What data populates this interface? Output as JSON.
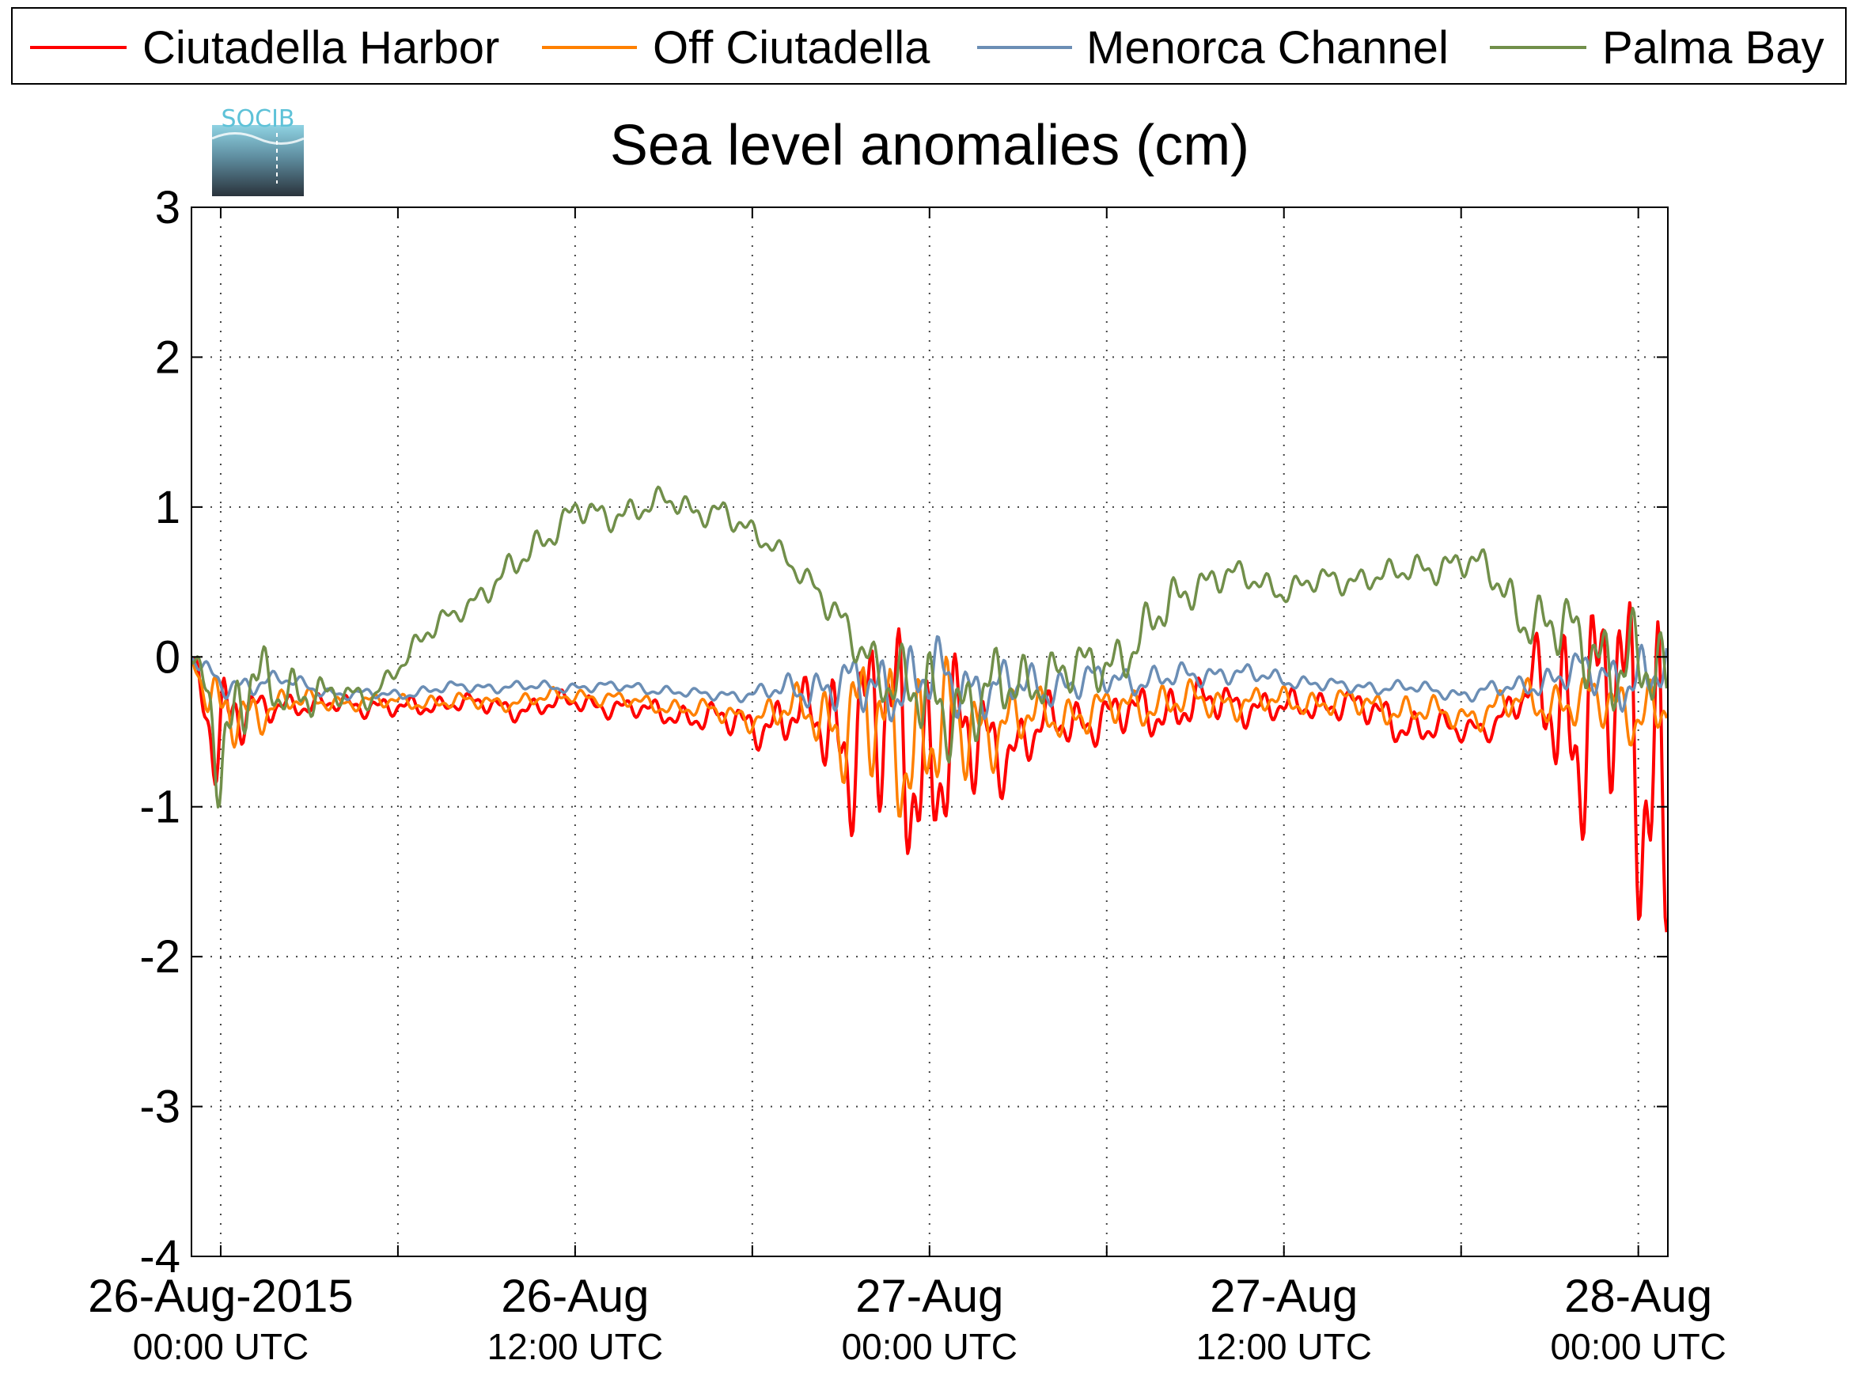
{
  "chart_data": {
    "type": "line",
    "title": "Sea level anomalies (cm)",
    "xlabel": "",
    "ylabel": "",
    "ylim": [
      -4,
      3
    ],
    "yticks": [
      "3",
      "2",
      "1",
      "0",
      "-1",
      "-2",
      "-3",
      "-4"
    ],
    "xlim": [
      "2015-08-26T00:00",
      "2015-08-28T00:00"
    ],
    "xticks": [
      {
        "date": "26-Aug-2015",
        "time": "00:00 UTC"
      },
      {
        "date": "26-Aug",
        "time": "12:00 UTC"
      },
      {
        "date": "27-Aug",
        "time": "00:00 UTC"
      },
      {
        "date": "27-Aug",
        "time": "12:00 UTC"
      },
      {
        "date": "28-Aug",
        "time": "00:00 UTC"
      }
    ],
    "grid": true,
    "legend_position": "top",
    "series": [
      {
        "name": "Ciutadella Harbor",
        "color": "#ff0000",
        "x": [
          "25-Aug 23:00",
          "26-Aug 00:00",
          "26-Aug 01:00",
          "26-Aug 02:00",
          "26-Aug 03:00",
          "26-Aug 04:00",
          "26-Aug 06:00",
          "26-Aug 08:00",
          "26-Aug 10:00",
          "26-Aug 12:00",
          "26-Aug 14:00",
          "26-Aug 16:00",
          "26-Aug 18:00",
          "26-Aug 20:00",
          "26-Aug 21:00",
          "26-Aug 22:00",
          "26-Aug 23:00",
          "27-Aug 00:00",
          "27-Aug 01:00",
          "27-Aug 02:00",
          "27-Aug 03:00",
          "27-Aug 04:00",
          "27-Aug 06:00",
          "27-Aug 08:00",
          "27-Aug 10:00",
          "27-Aug 12:00",
          "27-Aug 14:00",
          "27-Aug 16:00",
          "27-Aug 18:00",
          "27-Aug 19:00",
          "27-Aug 20:00",
          "27-Aug 21:00",
          "27-Aug 22:00",
          "27-Aug 23:00",
          "28-Aug 00:00",
          "28-Aug 01:00",
          "28-Aug 02:00"
        ],
        "values": [
          0.0,
          -0.6,
          -0.35,
          -0.3,
          -0.35,
          -0.3,
          -0.35,
          -0.3,
          -0.35,
          -0.3,
          -0.35,
          -0.4,
          -0.45,
          -0.4,
          -0.5,
          -0.45,
          -0.6,
          -0.7,
          -0.6,
          -0.55,
          -0.6,
          -0.45,
          -0.4,
          -0.35,
          -0.3,
          -0.35,
          -0.3,
          -0.45,
          -0.5,
          -0.45,
          -0.3,
          -0.25,
          -0.4,
          -0.3,
          -0.5,
          -0.9,
          -0.4
        ],
        "amplitude": [
          0.05,
          0.55,
          0.15,
          0.1,
          0.08,
          0.08,
          0.08,
          0.07,
          0.08,
          0.08,
          0.08,
          0.1,
          0.15,
          0.25,
          0.6,
          0.8,
          0.9,
          0.8,
          0.6,
          0.4,
          0.25,
          0.2,
          0.18,
          0.2,
          0.15,
          0.12,
          0.12,
          0.15,
          0.1,
          0.1,
          0.15,
          0.6,
          0.9,
          0.9,
          1.3,
          1.6,
          1.0
        ]
      },
      {
        "name": "Off Ciutadella",
        "color": "#ff8000",
        "x": [
          "25-Aug 23:00",
          "26-Aug 00:00",
          "26-Aug 02:00",
          "26-Aug 04:00",
          "26-Aug 06:00",
          "26-Aug 08:00",
          "26-Aug 10:00",
          "26-Aug 12:00",
          "26-Aug 14:00",
          "26-Aug 16:00",
          "26-Aug 18:00",
          "26-Aug 20:00",
          "26-Aug 21:00",
          "26-Aug 22:00",
          "26-Aug 23:00",
          "27-Aug 00:00",
          "27-Aug 01:00",
          "27-Aug 02:00",
          "27-Aug 04:00",
          "27-Aug 06:00",
          "27-Aug 08:00",
          "27-Aug 10:00",
          "27-Aug 12:00",
          "27-Aug 14:00",
          "27-Aug 16:00",
          "27-Aug 18:00",
          "27-Aug 20:00",
          "27-Aug 22:00",
          "28-Aug 00:00",
          "28-Aug 02:00"
        ],
        "values": [
          0.0,
          -0.45,
          -0.3,
          -0.3,
          -0.3,
          -0.3,
          -0.3,
          -0.25,
          -0.3,
          -0.35,
          -0.4,
          -0.35,
          -0.45,
          -0.45,
          -0.55,
          -0.55,
          -0.5,
          -0.45,
          -0.4,
          -0.35,
          -0.3,
          -0.3,
          -0.3,
          -0.3,
          -0.35,
          -0.4,
          -0.3,
          -0.3,
          -0.35,
          -0.35
        ],
        "amplitude": [
          0.05,
          0.3,
          0.1,
          0.06,
          0.06,
          0.06,
          0.06,
          0.06,
          0.06,
          0.07,
          0.1,
          0.2,
          0.4,
          0.55,
          0.6,
          0.55,
          0.45,
          0.3,
          0.18,
          0.15,
          0.15,
          0.12,
          0.1,
          0.1,
          0.12,
          0.1,
          0.15,
          0.2,
          0.25,
          0.3
        ]
      },
      {
        "name": "Menorca Channel",
        "color": "#6b8eb5",
        "x": [
          "25-Aug 23:00",
          "26-Aug 00:00",
          "26-Aug 02:00",
          "26-Aug 04:00",
          "26-Aug 06:00",
          "26-Aug 08:00",
          "26-Aug 10:00",
          "26-Aug 12:00",
          "26-Aug 14:00",
          "26-Aug 16:00",
          "26-Aug 18:00",
          "26-Aug 20:00",
          "26-Aug 22:00",
          "27-Aug 00:00",
          "27-Aug 02:00",
          "27-Aug 04:00",
          "27-Aug 06:00",
          "27-Aug 08:00",
          "27-Aug 10:00",
          "27-Aug 12:00",
          "27-Aug 14:00",
          "27-Aug 16:00",
          "27-Aug 18:00",
          "27-Aug 20:00",
          "27-Aug 22:00",
          "28-Aug 00:00",
          "28-Aug 02:00"
        ],
        "values": [
          0.0,
          -0.2,
          -0.15,
          -0.25,
          -0.25,
          -0.2,
          -0.2,
          -0.2,
          -0.2,
          -0.25,
          -0.25,
          -0.2,
          -0.2,
          -0.15,
          -0.2,
          -0.2,
          -0.15,
          -0.15,
          -0.1,
          -0.15,
          -0.2,
          -0.2,
          -0.25,
          -0.2,
          -0.1,
          -0.15,
          -0.1
        ],
        "amplitude": [
          0.05,
          0.1,
          0.06,
          0.04,
          0.04,
          0.04,
          0.04,
          0.04,
          0.04,
          0.04,
          0.05,
          0.15,
          0.25,
          0.3,
          0.2,
          0.15,
          0.12,
          0.1,
          0.08,
          0.06,
          0.05,
          0.05,
          0.05,
          0.08,
          0.15,
          0.25,
          0.2
        ]
      },
      {
        "name": "Palma Bay",
        "color": "#718f4a",
        "x": [
          "25-Aug 23:00",
          "26-Aug 00:00",
          "26-Aug 01:00",
          "26-Aug 02:00",
          "26-Aug 03:00",
          "26-Aug 04:00",
          "26-Aug 05:00",
          "26-Aug 06:00",
          "26-Aug 07:00",
          "26-Aug 08:00",
          "26-Aug 09:00",
          "26-Aug 10:00",
          "26-Aug 11:00",
          "26-Aug 12:00",
          "26-Aug 13:00",
          "26-Aug 14:00",
          "26-Aug 15:00",
          "26-Aug 16:00",
          "26-Aug 17:00",
          "26-Aug 18:00",
          "26-Aug 19:00",
          "26-Aug 20:00",
          "26-Aug 21:00",
          "26-Aug 22:00",
          "26-Aug 23:00",
          "27-Aug 00:00",
          "27-Aug 01:00",
          "27-Aug 02:00",
          "27-Aug 03:00",
          "27-Aug 04:00",
          "27-Aug 05:00",
          "27-Aug 06:00",
          "27-Aug 07:00",
          "27-Aug 08:00",
          "27-Aug 09:00",
          "27-Aug 10:00",
          "27-Aug 11:00",
          "27-Aug 12:00",
          "27-Aug 13:00",
          "27-Aug 14:00",
          "27-Aug 15:00",
          "27-Aug 16:00",
          "27-Aug 17:00",
          "27-Aug 18:00",
          "27-Aug 19:00",
          "27-Aug 20:00",
          "27-Aug 21:00",
          "27-Aug 22:00",
          "27-Aug 23:00",
          "28-Aug 00:00",
          "28-Aug 01:00",
          "28-Aug 02:00"
        ],
        "values": [
          0.0,
          -0.6,
          -0.1,
          -0.3,
          -0.2,
          -0.25,
          -0.3,
          -0.05,
          0.15,
          0.3,
          0.45,
          0.6,
          0.8,
          1.0,
          0.9,
          1.0,
          1.05,
          0.95,
          1.0,
          0.8,
          0.7,
          0.5,
          0.2,
          0.0,
          -0.2,
          -0.35,
          -0.3,
          -0.25,
          -0.2,
          -0.1,
          -0.1,
          -0.05,
          0.1,
          0.3,
          0.5,
          0.55,
          0.5,
          0.45,
          0.5,
          0.5,
          0.55,
          0.55,
          0.6,
          0.65,
          0.55,
          0.3,
          0.2,
          0.1,
          0.0,
          -0.1,
          -0.2,
          -0.3
        ],
        "amplitude": [
          0.05,
          0.5,
          0.3,
          0.2,
          0.2,
          0.1,
          0.08,
          0.08,
          0.1,
          0.08,
          0.1,
          0.12,
          0.12,
          0.1,
          0.12,
          0.1,
          0.1,
          0.1,
          0.1,
          0.1,
          0.08,
          0.1,
          0.15,
          0.2,
          0.3,
          0.4,
          0.35,
          0.3,
          0.25,
          0.2,
          0.2,
          0.2,
          0.2,
          0.2,
          0.15,
          0.12,
          0.1,
          0.1,
          0.1,
          0.1,
          0.1,
          0.1,
          0.12,
          0.12,
          0.15,
          0.2,
          0.25,
          0.3,
          0.35,
          0.4,
          0.35,
          0.3
        ]
      }
    ]
  },
  "logo": {
    "text": "SOCIB",
    "colors": {
      "top": "#7ec6d8",
      "bottom": "#2f3a45",
      "text": "#5ec2d8"
    }
  },
  "colors": {
    "axis": "#000000",
    "grid": "#555555",
    "background": "#ffffff"
  }
}
